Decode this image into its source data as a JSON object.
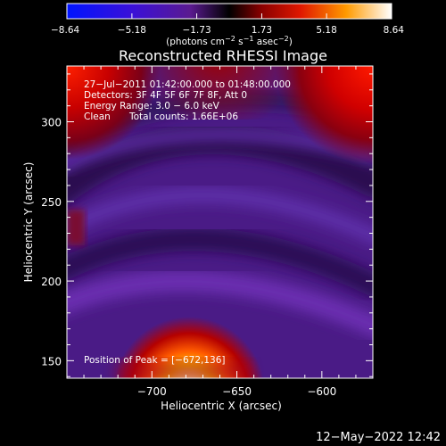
{
  "chart_data": {
    "type": "heatmap",
    "title": "Reconstructed RHESSI Image",
    "xlabel": "Heliocentric X (arcsec)",
    "ylabel": "Heliocentric Y (arcsec)",
    "xlim": [
      -750,
      -570
    ],
    "ylim": [
      139,
      335
    ],
    "x_ticks": [
      -700,
      -650,
      -600
    ],
    "x_tick_labels": [
      "−700",
      "−650",
      "−600"
    ],
    "y_ticks": [
      150,
      200,
      250,
      300
    ],
    "y_tick_labels": [
      "150",
      "200",
      "250",
      "300"
    ],
    "colorbar": {
      "range": [
        -8.64,
        8.64
      ],
      "tick_labels": [
        "−8.64",
        "−5.18",
        "−1.73",
        "1.73",
        "5.18",
        "8.64"
      ],
      "tick_values": [
        -8.64,
        -5.18,
        -1.73,
        1.73,
        5.18,
        8.64
      ],
      "unit_label_parts": [
        "(photons cm",
        "−2",
        " s",
        "−1",
        " asec",
        "−2",
        ")"
      ]
    },
    "annotations": {
      "time_range": "27−Jul−2011 01:42:00.000 to 01:48:00.000",
      "detectors": "Detectors: 3F 4F 5F 6F 7F 8F, Att 0",
      "energy_range": "Energy Range: 3.0 − 6.0 keV",
      "method": "Clean",
      "total_counts": "Total counts: 1.66E+06",
      "peak_position": "Position of Peak = [−672,136]"
    },
    "peak": {
      "x": -672,
      "y": 136
    },
    "features": [
      {
        "name": "peak source",
        "x": -672,
        "y": 136,
        "value": 8.6
      },
      {
        "name": "upper-right source",
        "x": -575,
        "y": 335,
        "value": 4.5
      },
      {
        "name": "upper-left source",
        "x": -745,
        "y": 335,
        "value": 4.0
      }
    ]
  },
  "footer": {
    "date": "12−May−2022 12:42"
  }
}
